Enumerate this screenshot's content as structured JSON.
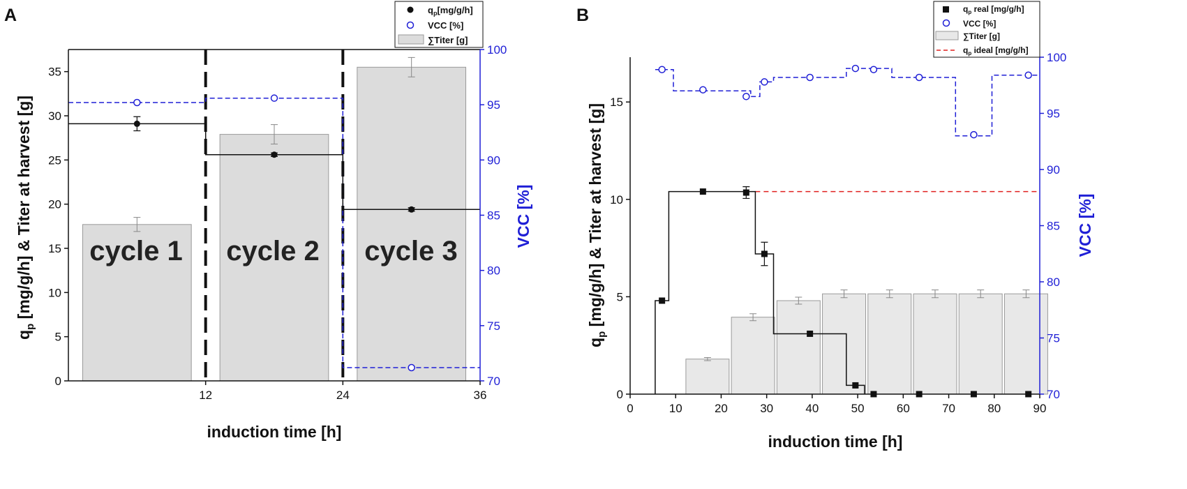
{
  "colors": {
    "black": "#111111",
    "blue": "#1f1fd6",
    "red": "#e0201f",
    "bar_fill_a": "#dcdcdc",
    "bar_fill_b": "#e8e8e8",
    "bar_stroke": "#999999"
  },
  "chart_data": [
    {
      "type": "bar",
      "panel_label": "A",
      "xlabel": "induction time [h]",
      "ylabel_left": [
        "q",
        "p",
        " [mg/g/h]  & Titer at harvest [g]"
      ],
      "ylabel_right": "VCC [%]",
      "xlim": [
        0,
        36
      ],
      "ylim_left": [
        0,
        37.5
      ],
      "ylim_right": [
        70,
        100
      ],
      "x_ticks": [
        12,
        24,
        36
      ],
      "y_ticks_left": [
        0,
        5,
        10,
        15,
        20,
        25,
        30,
        35
      ],
      "y_ticks_right": [
        70,
        75,
        80,
        85,
        90,
        95,
        100
      ],
      "legend": [
        {
          "label_main": "q",
          "label_sub": "p",
          "label_rest": "[mg/g/h]"
        },
        {
          "label_main": "VCC [%]"
        },
        {
          "label_main": "∑Titer [g]"
        }
      ],
      "cycle_labels": [
        "cycle 1",
        "cycle 2",
        "cycle 3"
      ],
      "titer_bars": {
        "x_centers": [
          6,
          18,
          30
        ],
        "values": [
          17.7,
          27.9,
          35.5
        ],
        "errors": [
          0.8,
          1.1,
          1.1
        ]
      },
      "qp": {
        "x": [
          6,
          18,
          30
        ],
        "values": [
          29.1,
          25.6,
          19.4
        ],
        "errors": [
          0.8,
          0.2,
          0.2
        ],
        "steps": [
          [
            0,
            29.1
          ],
          [
            12,
            29.1
          ],
          [
            12,
            25.6
          ],
          [
            24,
            25.6
          ],
          [
            24,
            19.4
          ],
          [
            36,
            19.4
          ]
        ]
      },
      "vcc": {
        "x": [
          6,
          18,
          30
        ],
        "values": [
          95.2,
          95.6,
          71.2
        ],
        "steps": [
          [
            0,
            95.2
          ],
          [
            12,
            95.2
          ],
          [
            12,
            95.6
          ],
          [
            24,
            95.6
          ],
          [
            24,
            71.2
          ],
          [
            36,
            71.2
          ]
        ]
      },
      "cycle_boundaries": [
        12,
        24
      ]
    },
    {
      "type": "bar",
      "panel_label": "B",
      "xlabel": "induction time [h]",
      "ylabel_left": [
        "q",
        "p",
        " [mg/g/h]  & Titer at harvest [g]"
      ],
      "ylabel_right": "VCC [%]",
      "xlim": [
        0,
        90
      ],
      "ylim_left": [
        0,
        17.3
      ],
      "ylim_right": [
        70,
        100
      ],
      "x_ticks": [
        0,
        10,
        20,
        30,
        40,
        50,
        60,
        70,
        80,
        90
      ],
      "y_ticks_left": [
        0,
        5,
        10,
        15
      ],
      "y_ticks_right": [
        70,
        75,
        80,
        85,
        90,
        95,
        100
      ],
      "legend": [
        {
          "label_main": "q",
          "label_sub": "p",
          "label_rest": " real [mg/g/h]"
        },
        {
          "label_main": "VCC [%]"
        },
        {
          "label_main": "∑Titer [g]"
        },
        {
          "label_main": "q",
          "label_sub": "p",
          "label_rest": " ideal [mg/g/h]"
        }
      ],
      "titer_bars": {
        "x_centers": [
          17,
          27,
          37,
          47,
          57,
          67,
          77,
          87
        ],
        "values": [
          1.8,
          3.95,
          4.8,
          5.15,
          5.15,
          5.15,
          5.15,
          5.15
        ],
        "errors": [
          0.08,
          0.18,
          0.18,
          0.2,
          0.2,
          0.2,
          0.2,
          0.2
        ]
      },
      "qp_real": {
        "x": [
          7,
          16,
          25.5,
          29.5,
          39.5,
          49.5,
          53.5,
          63.5,
          75.5,
          87.5
        ],
        "values": [
          4.8,
          10.4,
          10.35,
          7.2,
          3.1,
          0.45,
          0.0,
          0.0,
          0.0,
          0.0
        ],
        "errors": [
          0,
          0,
          0.3,
          0.6,
          0,
          0,
          0,
          0,
          0,
          0
        ],
        "steps": [
          [
            5.5,
            0
          ],
          [
            5.5,
            4.8
          ],
          [
            8.5,
            4.8
          ],
          [
            8.5,
            10.4
          ],
          [
            27.5,
            10.4
          ],
          [
            27.5,
            7.2
          ],
          [
            31.5,
            7.2
          ],
          [
            31.5,
            3.1
          ],
          [
            47.5,
            3.1
          ],
          [
            47.5,
            0.45
          ],
          [
            51.5,
            0.45
          ],
          [
            51.5,
            0
          ]
        ]
      },
      "qp_ideal": {
        "value": 10.4,
        "x_start": 27.5,
        "x_end": 90
      },
      "vcc": {
        "x": [
          7,
          16,
          25.5,
          29.5,
          39.5,
          49.5,
          53.5,
          63.5,
          75.5,
          87.5
        ],
        "values": [
          98.9,
          97.1,
          96.5,
          97.8,
          98.2,
          99.0,
          98.9,
          98.2,
          93.1,
          98.4
        ],
        "steps": [
          [
            5.5,
            98.9
          ],
          [
            9.5,
            98.9
          ],
          [
            9.5,
            97.0
          ],
          [
            26.5,
            97.0
          ],
          [
            26.5,
            96.5
          ],
          [
            28.5,
            96.5
          ],
          [
            28.5,
            97.8
          ],
          [
            31.5,
            97.8
          ],
          [
            31.5,
            98.2
          ],
          [
            47.5,
            98.2
          ],
          [
            47.5,
            99.0
          ],
          [
            57.5,
            99.0
          ],
          [
            57.5,
            98.2
          ],
          [
            71.5,
            98.2
          ],
          [
            71.5,
            93.0
          ],
          [
            79.5,
            93.0
          ],
          [
            79.5,
            98.4
          ],
          [
            90,
            98.4
          ]
        ]
      }
    }
  ]
}
